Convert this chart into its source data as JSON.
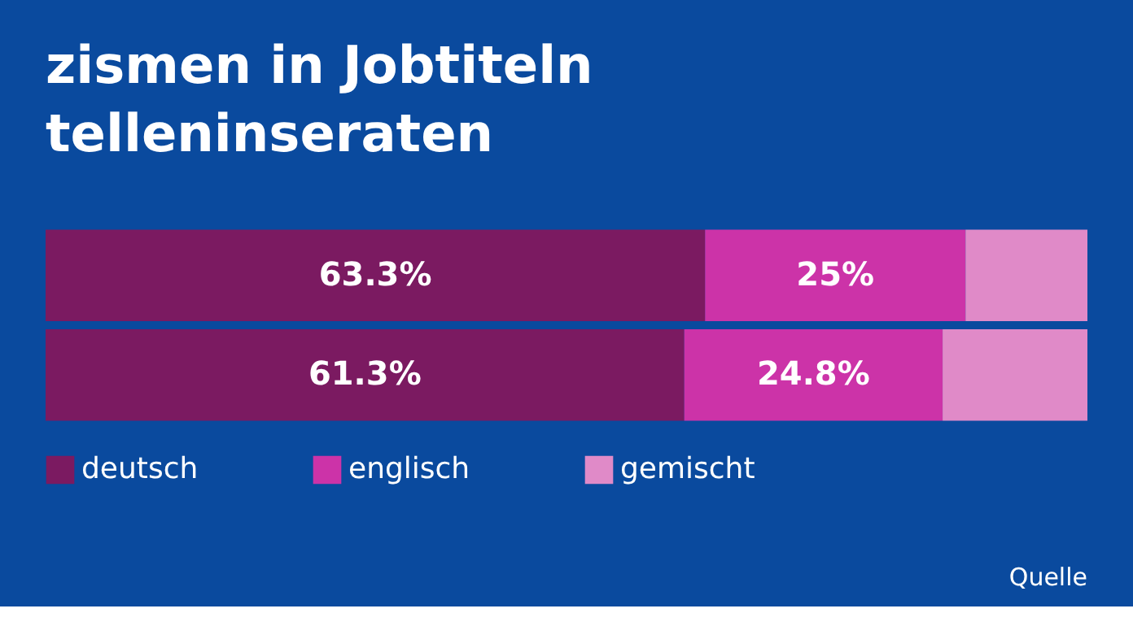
{
  "chart_data": {
    "type": "bar",
    "orientation": "horizontal",
    "stacked": true,
    "title": "zismen in Jobtiteln\ntelleninseraten",
    "categories": [
      null,
      null
    ],
    "series": [
      {
        "name": "deutsch",
        "color": "#7b1a61",
        "values": [
          63.3,
          61.3
        ],
        "value_labels": [
          "63.3%",
          "61.3%"
        ]
      },
      {
        "name": "englisch",
        "color": "#cc33a8",
        "values": [
          25,
          24.8
        ],
        "value_labels": [
          "25%",
          "24.8%"
        ]
      },
      {
        "name": "gemischt",
        "color": "#e08ac8",
        "values": [
          11.7,
          13.9
        ],
        "value_labels": [
          null,
          null
        ]
      }
    ],
    "xlim": [
      0,
      100
    ],
    "tick_labels": false,
    "legend": "bottom",
    "annotations": [
      "Quelle"
    ]
  }
}
